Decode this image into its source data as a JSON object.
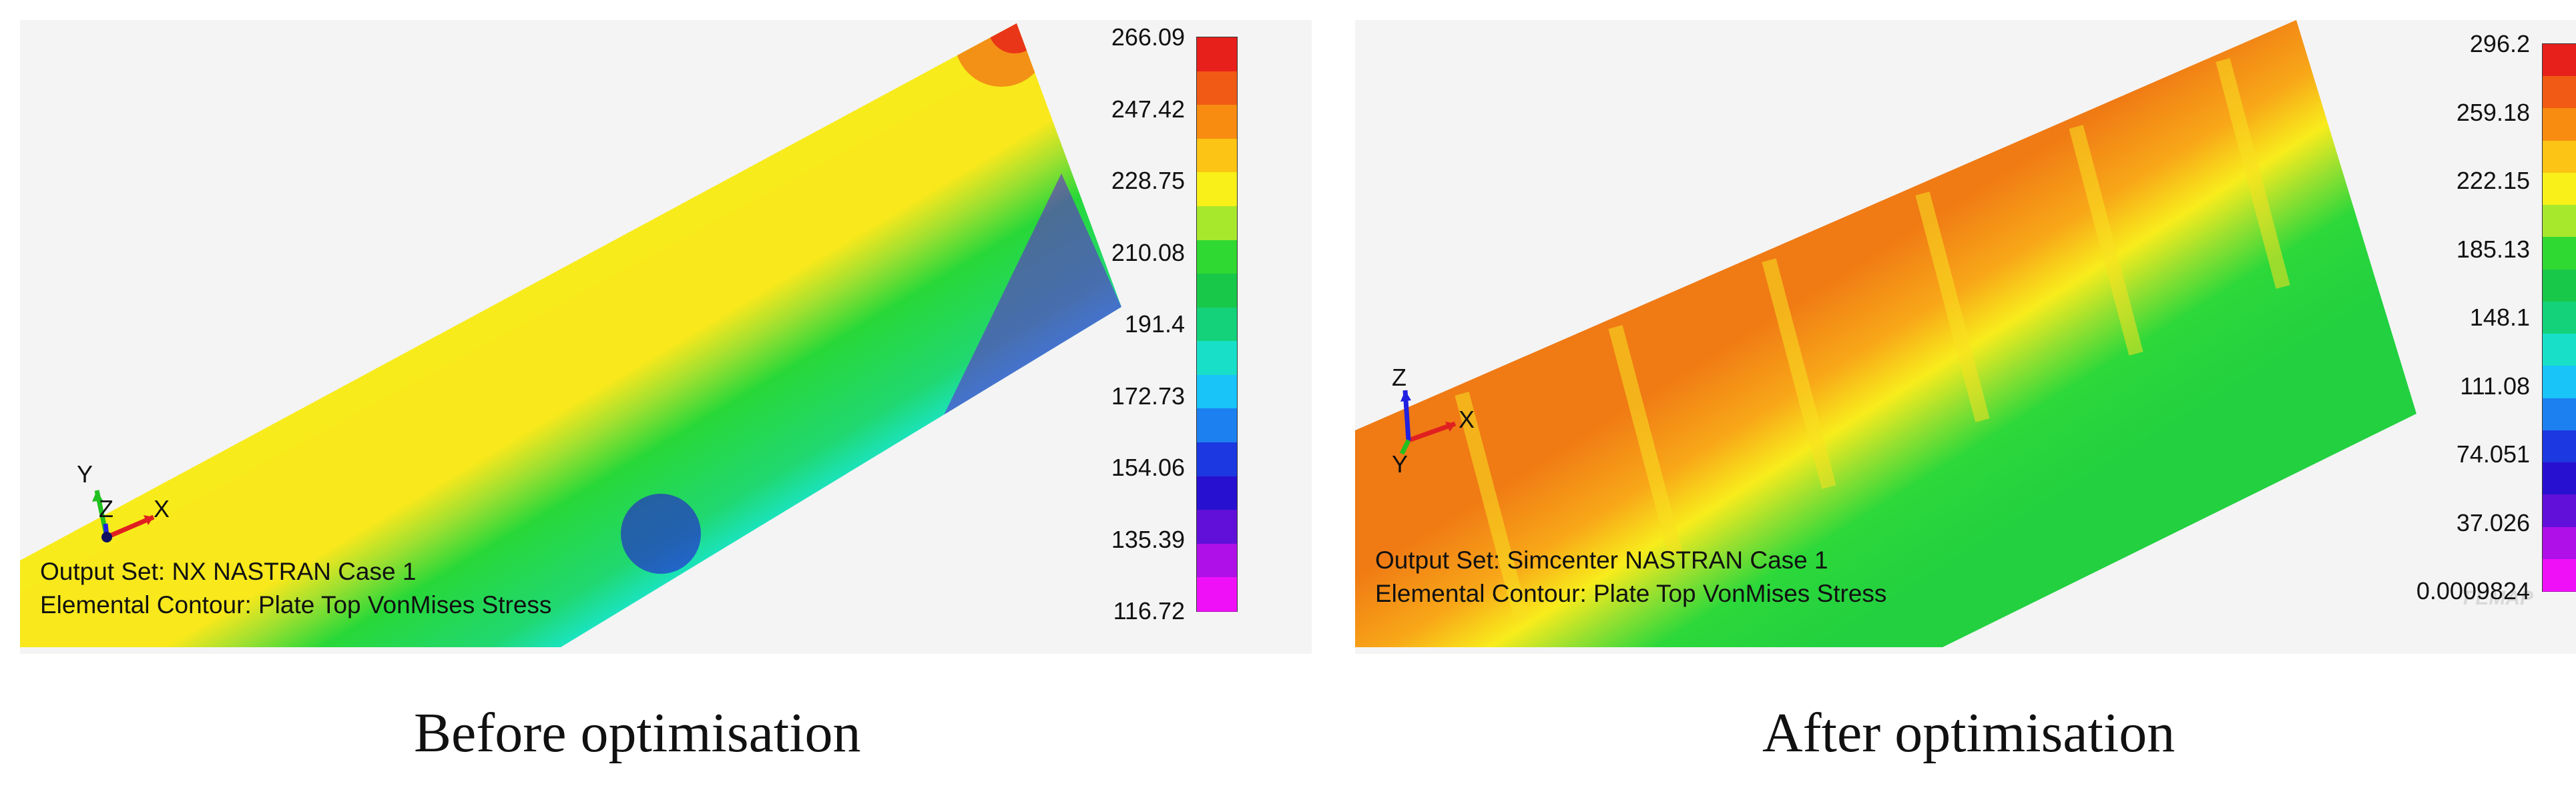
{
  "panels": [
    {
      "output_set": "Output Set: NX NASTRAN Case 1",
      "contour": "Elemental Contour: Plate Top VonMises Stress",
      "caption": "Before optimisation",
      "legend": [
        "266.09",
        "247.42",
        "228.75",
        "210.08",
        "191.4",
        "172.73",
        "154.06",
        "135.39",
        "116.72"
      ],
      "axes": {
        "a": "Y",
        "b": "Z",
        "c": "X"
      }
    },
    {
      "output_set": "Output Set: Simcenter NASTRAN Case 1",
      "contour": "Elemental Contour: Plate Top VonMises Stress",
      "caption": "After optimisation",
      "legend": [
        "296.2",
        "259.18",
        "222.15",
        "185.13",
        "148.1",
        "111.08",
        "74.051",
        "37.026",
        "0.0009824"
      ],
      "axes": {
        "a": "Z",
        "b": "Y",
        "c": "X"
      },
      "watermark": "FEMAP"
    }
  ],
  "colors": {
    "scale": [
      "#e8201c",
      "#f05a14",
      "#f88c10",
      "#fcc414",
      "#f8f018",
      "#a8e82c",
      "#30d832",
      "#18c848",
      "#14d27a",
      "#18e0c8",
      "#18c4f8",
      "#1c80f0",
      "#1c38e0",
      "#2810d0",
      "#6010d8",
      "#b010e8",
      "#f010f8"
    ]
  }
}
